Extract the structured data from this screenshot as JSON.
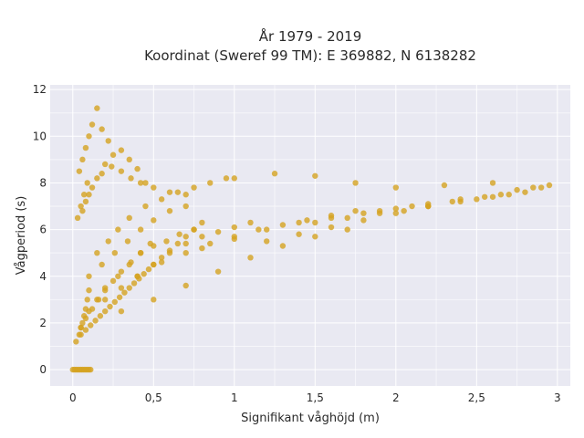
{
  "chart_data": {
    "type": "scatter",
    "title_line1": "År 1979 - 2019",
    "title_line2": "Koordinat (Sweref 99 TM): E 369882, N 6138282",
    "xlabel": "Signifikant våghöjd (m)",
    "ylabel": "Vågperiod (s)",
    "xlim": [
      -0.14,
      3.08
    ],
    "ylim": [
      -0.7,
      12.2
    ],
    "x_ticks": [
      0,
      0.5,
      1,
      1.5,
      2,
      2.5,
      3
    ],
    "x_tick_labels": [
      "0",
      "0,5",
      "1",
      "1,5",
      "2",
      "2,5",
      "3"
    ],
    "y_ticks": [
      0,
      2,
      4,
      6,
      8,
      10,
      12
    ],
    "y_tick_labels": [
      "0",
      "2",
      "4",
      "6",
      "8",
      "10",
      "12"
    ],
    "grid": true,
    "plot_background": "#e9e9f2",
    "marker_color": "#d4a320",
    "series": [
      {
        "x": [
          0.02,
          0.04,
          0.05,
          0.06,
          0.07,
          0.08,
          0.09,
          0.1,
          0.03,
          0.05,
          0.07,
          0.09,
          0.04,
          0.06,
          0.08,
          0.1,
          0.12,
          0.15,
          0.18,
          0.22,
          0.05,
          0.08,
          0.12,
          0.16,
          0.2,
          0.25,
          0.3,
          0.36,
          0.42,
          0.48,
          0.1,
          0.15,
          0.2,
          0.28,
          0.35,
          0.42,
          0.5,
          0.58,
          0.66,
          0.75,
          0.2,
          0.3,
          0.4,
          0.5,
          0.6,
          0.7,
          0.8,
          0.9,
          1.0,
          1.1,
          0.4,
          0.55,
          0.7,
          0.85,
          1.0,
          1.15,
          1.3,
          1.45,
          1.6,
          1.75,
          0.8,
          1.0,
          1.2,
          1.4,
          1.6,
          1.8,
          1.9,
          2.0,
          2.1,
          2.2,
          1.5,
          1.7,
          1.9,
          2.05,
          2.2,
          2.35,
          2.5,
          2.6,
          2.7,
          2.8,
          2.2,
          2.4,
          2.55,
          2.65,
          2.75,
          2.85,
          2.95,
          0.06,
          0.1,
          0.15,
          0.2,
          0.25,
          0.3,
          0.35,
          0.4,
          0.45,
          0.08,
          0.12,
          0.18,
          0.24,
          0.3,
          0.36,
          0.42,
          0.5,
          0.6,
          0.7,
          0.15,
          0.22,
          0.28,
          0.35,
          0.45,
          0.55,
          0.65,
          0.75,
          0.85,
          0.95,
          0.1,
          0.18,
          0.26,
          0.34,
          0.42,
          0.5,
          0.6,
          0.7,
          0.3,
          0.5,
          0.7,
          0.9,
          1.1,
          1.3,
          1.5,
          1.7,
          1.2,
          1.4,
          1.6,
          1.8,
          2.0,
          2.2,
          2.4,
          1.0,
          1.25,
          1.5,
          1.75,
          2.0,
          2.3,
          2.6,
          2.9,
          0.05,
          0.08,
          0.11,
          0.14,
          0.17,
          0.2,
          0.23,
          0.26,
          0.29,
          0.32,
          0.35,
          0.38,
          0.41,
          0.44,
          0.47,
          0.5,
          0.55,
          0.6,
          0.65,
          0.7,
          0.75,
          0.8
        ],
        "y": [
          1.2,
          1.5,
          1.8,
          2.0,
          2.3,
          2.6,
          3.0,
          3.4,
          6.5,
          7.0,
          7.5,
          8.0,
          8.5,
          9.0,
          9.5,
          10.0,
          10.5,
          11.2,
          10.3,
          9.8,
          1.8,
          2.2,
          2.6,
          3.0,
          3.4,
          3.8,
          4.2,
          4.6,
          5.0,
          5.4,
          2.5,
          3.0,
          3.5,
          4.0,
          4.5,
          5.0,
          5.3,
          5.5,
          5.8,
          6.0,
          3.0,
          3.5,
          4.0,
          4.5,
          5.0,
          5.4,
          5.7,
          5.9,
          6.1,
          6.3,
          4.0,
          4.6,
          5.0,
          5.4,
          5.7,
          6.0,
          6.2,
          6.4,
          6.6,
          6.8,
          5.2,
          5.6,
          6.0,
          6.3,
          6.5,
          6.7,
          6.8,
          6.9,
          7.0,
          7.1,
          6.3,
          6.5,
          6.7,
          6.8,
          7.0,
          7.2,
          7.3,
          7.4,
          7.5,
          7.6,
          7.0,
          7.2,
          7.4,
          7.5,
          7.7,
          7.8,
          7.9,
          6.8,
          7.5,
          8.2,
          8.8,
          9.2,
          9.4,
          9.0,
          8.6,
          8.0,
          7.2,
          7.8,
          8.4,
          8.7,
          8.5,
          8.2,
          8.0,
          7.8,
          7.6,
          7.5,
          5.0,
          5.5,
          6.0,
          6.5,
          7.0,
          7.3,
          7.6,
          7.8,
          8.0,
          8.2,
          4.0,
          4.5,
          5.0,
          5.5,
          6.0,
          6.4,
          6.8,
          7.0,
          2.5,
          3.0,
          3.6,
          4.2,
          4.8,
          5.3,
          5.7,
          6.0,
          5.5,
          5.8,
          6.1,
          6.4,
          6.7,
          7.0,
          7.3,
          8.2,
          8.4,
          8.3,
          8.0,
          7.8,
          7.9,
          8.0,
          7.8,
          1.5,
          1.7,
          1.9,
          2.1,
          2.3,
          2.5,
          2.7,
          2.9,
          3.1,
          3.3,
          3.5,
          3.7,
          3.9,
          4.1,
          4.3,
          4.5,
          4.8,
          5.1,
          5.4,
          5.7,
          6.0,
          6.3
        ]
      },
      {
        "x": [
          0.0,
          0.01,
          0.02,
          0.03,
          0.04,
          0.05,
          0.06,
          0.07,
          0.08,
          0.09,
          0.1,
          0.11
        ],
        "y": [
          0,
          0,
          0,
          0,
          0,
          0,
          0,
          0,
          0,
          0,
          0,
          0
        ]
      }
    ]
  }
}
